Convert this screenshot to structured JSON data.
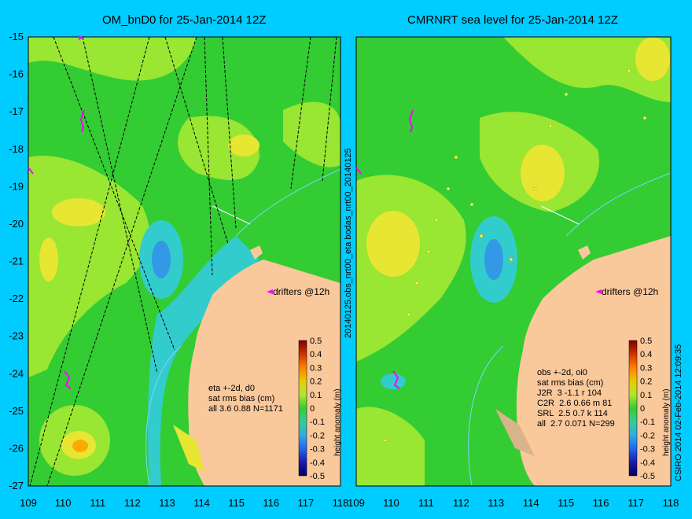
{
  "left_panel": {
    "title": "OM_bnD0 for 25-Jan-2014 12Z",
    "stats_lines": [
      "eta +-2d, d0",
      "sat rms bias (cm)",
      "all 3.6 0.88 N=1171"
    ],
    "drifters_label": "drifters @12h",
    "colorbar_label": "height anomaly (m)"
  },
  "right_panel": {
    "title": "CMRNRT sea level  for 25-Jan-2014 12Z",
    "stats_lines": [
      "obs +-2d, oi0",
      "sat rms bias (cm)",
      "J2R  3 -1.1 r 104",
      "C2R  2.6 0.66 m 81",
      "SRL  2.5 0.7 k 114",
      "all  2.7 0.071 N=299"
    ],
    "drifters_label": "drifters @12h",
    "colorbar_label": "height anomaly (m)"
  },
  "center_vertical_label": "20140125.obs_nrt00_eta   bodas_nrt00_20140125",
  "credit": "CSIRO 2014  02-Feb-2014 12:09:35",
  "axes": {
    "lon_ticks": [
      "109",
      "110",
      "111",
      "112",
      "113",
      "114",
      "115",
      "116",
      "117",
      "118"
    ],
    "lat_ticks": [
      "-15",
      "-16",
      "-17",
      "-18",
      "-19",
      "-20",
      "-21",
      "-22",
      "-23",
      "-24",
      "-25",
      "-26",
      "-27"
    ]
  },
  "colorbar_ticks": [
    "0.5",
    "0.4",
    "0.3",
    "0.2",
    "0.1",
    "0",
    "-0.1",
    "-0.2",
    "-0.3",
    "-0.4",
    "-0.5"
  ],
  "colors": {
    "background": "#00ccff",
    "land": "#f9c89b",
    "field_green": "#33cc33",
    "field_light": "#99e633",
    "field_yellow": "#e6e633",
    "field_cyan": "#33cccc",
    "field_blue": "#3399e6"
  }
}
